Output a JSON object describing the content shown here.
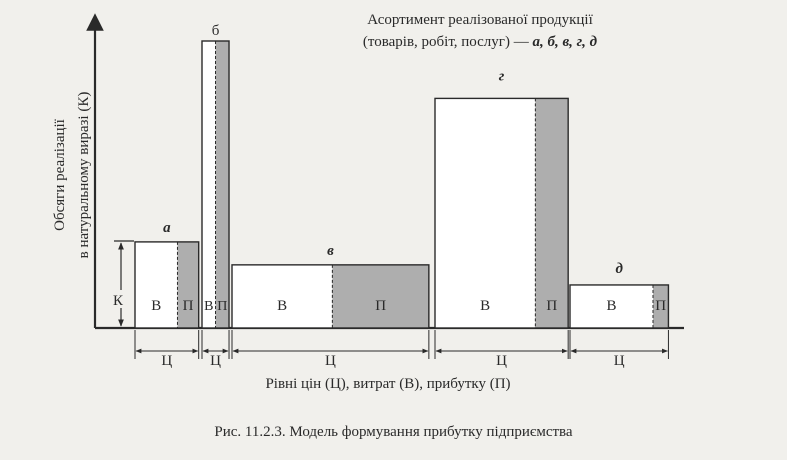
{
  "title": {
    "line1": "Асортимент реалізованої продукції",
    "line2_prefix": "(товарів, робіт, послуг) — ",
    "line2_letters": "а, б, в, г, д"
  },
  "y_axis_label": {
    "line1": "Обсяги реалізації",
    "line2": "в натуральному виразі (К)"
  },
  "x_axis_label": "Рівні цін (Ц), витрат (В), прибутку (П)",
  "caption": "Рис. 11.2.3. Модель формування прибутку підприємства",
  "k_label": "К",
  "colors": {
    "shaded": "#aeaeae",
    "line": "#2a2a2a",
    "background": "#f1f0ec"
  },
  "chart_data": {
    "type": "bar",
    "products": [
      {
        "letter": "а",
        "volume": 3,
        "cost": 2.2,
        "profit": 1.1,
        "cost_label": "В",
        "profit_label": "П",
        "price_label": "Ц"
      },
      {
        "letter": "б",
        "volume": 10,
        "cost": 0.7,
        "profit": 0.7,
        "cost_label": "В",
        "profit_label": "П",
        "price_label": "Ц"
      },
      {
        "letter": "в",
        "volume": 2.2,
        "cost": 5.2,
        "profit": 5.0,
        "cost_label": "В",
        "profit_label": "П",
        "price_label": "Ц"
      },
      {
        "letter": "г",
        "volume": 8,
        "cost": 5.2,
        "profit": 1.7,
        "cost_label": "В",
        "profit_label": "П",
        "price_label": "Ц"
      },
      {
        "letter": "д",
        "volume": 1.5,
        "cost": 4.3,
        "profit": 0.8,
        "cost_label": "В",
        "profit_label": "П",
        "price_label": "Ц"
      }
    ]
  }
}
